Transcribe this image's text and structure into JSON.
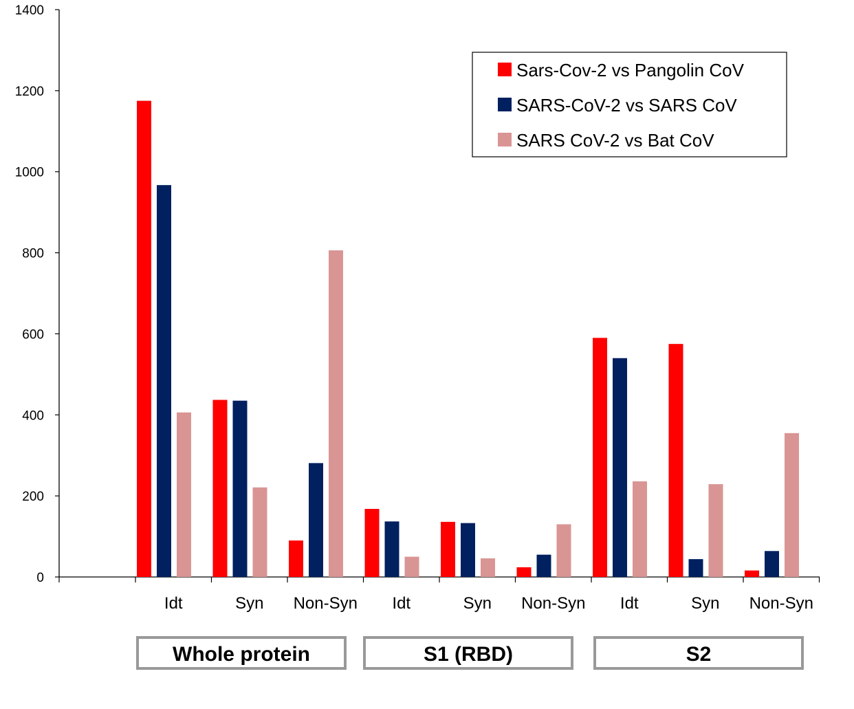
{
  "chart_data": {
    "type": "bar",
    "categories": [
      "Idt",
      "Syn",
      "Non-Syn",
      "Idt",
      "Syn",
      "Non-Syn",
      "Idt",
      "Syn",
      "Non-Syn"
    ],
    "groups": [
      {
        "label": "Whole  protein",
        "categories": [
          0,
          1,
          2
        ]
      },
      {
        "label": "S1 (RBD)",
        "categories": [
          3,
          4,
          5
        ]
      },
      {
        "label": "S2",
        "categories": [
          6,
          7,
          8
        ]
      }
    ],
    "series": [
      {
        "name": "Sars-Cov-2 vs Pangolin CoV",
        "color": "#ff0000",
        "values": [
          1175,
          437,
          90,
          168,
          136,
          24,
          590,
          575,
          16
        ]
      },
      {
        "name": "SARS-CoV-2 vs SARS CoV",
        "color": "#002060",
        "values": [
          967,
          435,
          281,
          137,
          133,
          55,
          540,
          44,
          64
        ]
      },
      {
        "name": "SARS CoV-2 vs Bat CoV",
        "color": "#d99594",
        "values": [
          406,
          221,
          806,
          50,
          46,
          130,
          236,
          229,
          355
        ]
      }
    ],
    "ylim": [
      0,
      1400
    ],
    "yticks": [
      0,
      200,
      400,
      600,
      800,
      1000,
      1200,
      1400
    ],
    "legend_position": "top-right",
    "grid": false
  }
}
